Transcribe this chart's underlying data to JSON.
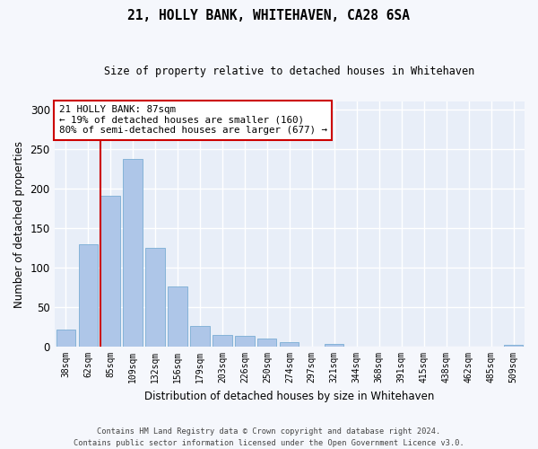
{
  "title": "21, HOLLY BANK, WHITEHAVEN, CA28 6SA",
  "subtitle": "Size of property relative to detached houses in Whitehaven",
  "xlabel": "Distribution of detached houses by size in Whitehaven",
  "ylabel": "Number of detached properties",
  "categories": [
    "38sqm",
    "62sqm",
    "85sqm",
    "109sqm",
    "132sqm",
    "156sqm",
    "179sqm",
    "203sqm",
    "226sqm",
    "250sqm",
    "274sqm",
    "297sqm",
    "321sqm",
    "344sqm",
    "368sqm",
    "391sqm",
    "415sqm",
    "438sqm",
    "462sqm",
    "485sqm",
    "509sqm"
  ],
  "values": [
    22,
    129,
    191,
    237,
    125,
    76,
    26,
    15,
    14,
    10,
    6,
    0,
    3,
    0,
    0,
    0,
    0,
    0,
    0,
    0,
    2
  ],
  "bar_color": "#aec6e8",
  "bar_edge_color": "#7aadd4",
  "bg_color": "#e8eef8",
  "grid_color": "#ffffff",
  "vline_color": "#cc0000",
  "annotation_text": "21 HOLLY BANK: 87sqm\n← 19% of detached houses are smaller (160)\n80% of semi-detached houses are larger (677) →",
  "annotation_box_color": "#cc0000",
  "footer": "Contains HM Land Registry data © Crown copyright and database right 2024.\nContains public sector information licensed under the Open Government Licence v3.0.",
  "ylim": [
    0,
    310
  ],
  "yticks": [
    0,
    50,
    100,
    150,
    200,
    250,
    300
  ],
  "fig_bg": "#f5f7fc"
}
